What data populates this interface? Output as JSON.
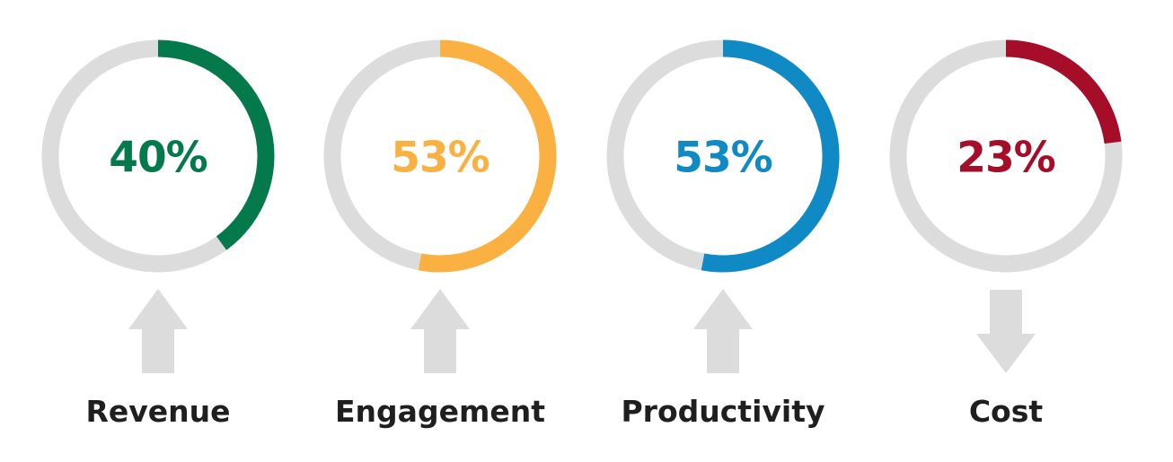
{
  "chart_data": {
    "type": "radial-progress",
    "items": [
      {
        "label": "Revenue",
        "value": 40,
        "value_label": "40%",
        "color": "#047a4c",
        "trend": "up"
      },
      {
        "label": "Engagement",
        "value": 53,
        "value_label": "53%",
        "color": "#fbb142",
        "trend": "up"
      },
      {
        "label": "Productivity",
        "value": 53,
        "value_label": "53%",
        "color": "#0f8ac5",
        "trend": "up"
      },
      {
        "label": "Cost",
        "value": 23,
        "value_label": "23%",
        "color": "#a50d29",
        "trend": "down"
      }
    ],
    "track_color": "#dcdcdc",
    "arrow_color": "#dcdcdc",
    "max": 100
  }
}
